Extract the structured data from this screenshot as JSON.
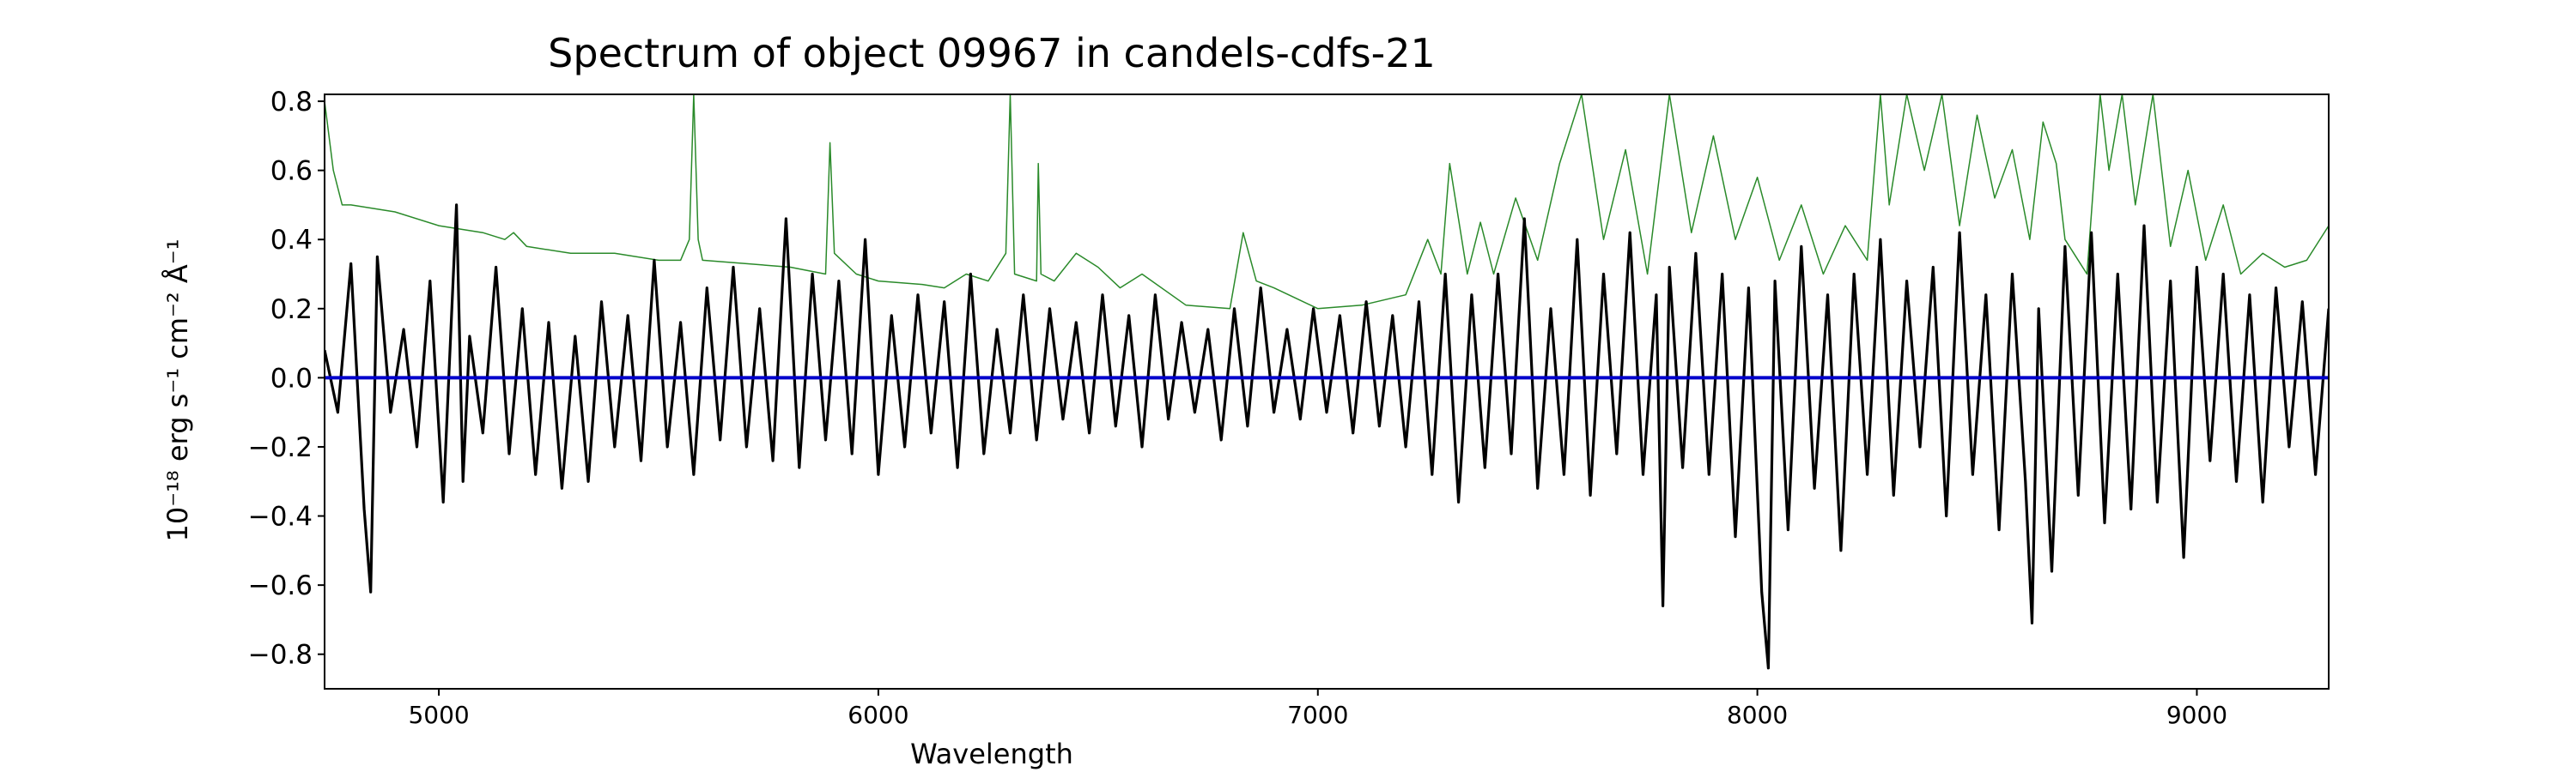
{
  "chart_data": {
    "type": "line",
    "title": "Spectrum of object 09967 in candels-cdfs-21",
    "xlabel": "Wavelength",
    "ylabel": "10⁻¹⁸ erg s⁻¹ cm⁻² Å⁻¹",
    "xlim": [
      4740,
      9300
    ],
    "ylim": [
      -0.9,
      0.82
    ],
    "xticks": [
      5000,
      6000,
      7000,
      8000,
      9000
    ],
    "yticks": [
      -0.8,
      -0.6,
      -0.4,
      -0.2,
      0.0,
      0.2,
      0.4,
      0.6,
      0.8
    ],
    "grid": false,
    "legend": "none",
    "series": [
      {
        "role": "flux",
        "color": "#000000",
        "x": [
          4740,
          4770,
          4800,
          4830,
          4845,
          4860,
          4890,
          4920,
          4950,
          4980,
          5010,
          5040,
          5055,
          5070,
          5100,
          5130,
          5160,
          5190,
          5220,
          5250,
          5280,
          5310,
          5340,
          5370,
          5400,
          5430,
          5460,
          5490,
          5520,
          5550,
          5580,
          5610,
          5640,
          5670,
          5700,
          5730,
          5760,
          5790,
          5820,
          5850,
          5880,
          5910,
          5940,
          5970,
          6000,
          6030,
          6060,
          6090,
          6120,
          6150,
          6180,
          6210,
          6240,
          6270,
          6300,
          6330,
          6360,
          6390,
          6420,
          6450,
          6480,
          6510,
          6540,
          6570,
          6600,
          6630,
          6660,
          6690,
          6720,
          6750,
          6780,
          6810,
          6840,
          6870,
          6900,
          6930,
          6960,
          6990,
          7020,
          7050,
          7080,
          7110,
          7140,
          7170,
          7200,
          7230,
          7260,
          7290,
          7320,
          7350,
          7380,
          7410,
          7440,
          7470,
          7500,
          7530,
          7560,
          7590,
          7620,
          7650,
          7680,
          7710,
          7740,
          7770,
          7785,
          7800,
          7830,
          7860,
          7890,
          7920,
          7950,
          7980,
          8010,
          8025,
          8040,
          8070,
          8100,
          8130,
          8160,
          8190,
          8220,
          8250,
          8280,
          8310,
          8340,
          8370,
          8400,
          8430,
          8460,
          8490,
          8520,
          8550,
          8580,
          8610,
          8625,
          8640,
          8670,
          8700,
          8730,
          8760,
          8790,
          8820,
          8850,
          8880,
          8910,
          8940,
          8970,
          9000,
          9030,
          9060,
          9090,
          9120,
          9150,
          9180,
          9210,
          9240,
          9270,
          9300
        ],
        "y": [
          0.08,
          -0.1,
          0.33,
          -0.38,
          -0.62,
          0.35,
          -0.1,
          0.14,
          -0.2,
          0.28,
          -0.36,
          0.5,
          -0.3,
          0.12,
          -0.16,
          0.32,
          -0.22,
          0.2,
          -0.28,
          0.16,
          -0.32,
          0.12,
          -0.3,
          0.22,
          -0.2,
          0.18,
          -0.24,
          0.34,
          -0.2,
          0.16,
          -0.28,
          0.26,
          -0.18,
          0.32,
          -0.2,
          0.2,
          -0.24,
          0.46,
          -0.26,
          0.3,
          -0.18,
          0.28,
          -0.22,
          0.4,
          -0.28,
          0.18,
          -0.2,
          0.24,
          -0.16,
          0.22,
          -0.26,
          0.3,
          -0.22,
          0.14,
          -0.16,
          0.24,
          -0.18,
          0.2,
          -0.12,
          0.16,
          -0.16,
          0.24,
          -0.14,
          0.18,
          -0.2,
          0.24,
          -0.12,
          0.16,
          -0.1,
          0.14,
          -0.18,
          0.2,
          -0.14,
          0.26,
          -0.1,
          0.14,
          -0.12,
          0.2,
          -0.1,
          0.18,
          -0.16,
          0.22,
          -0.14,
          0.18,
          -0.2,
          0.22,
          -0.28,
          0.3,
          -0.36,
          0.24,
          -0.26,
          0.3,
          -0.22,
          0.46,
          -0.32,
          0.2,
          -0.28,
          0.4,
          -0.34,
          0.3,
          -0.22,
          0.42,
          -0.28,
          0.24,
          -0.66,
          0.32,
          -0.26,
          0.36,
          -0.28,
          0.3,
          -0.46,
          0.26,
          -0.62,
          -0.84,
          0.28,
          -0.44,
          0.38,
          -0.32,
          0.24,
          -0.5,
          0.3,
          -0.28,
          0.4,
          -0.34,
          0.28,
          -0.2,
          0.32,
          -0.4,
          0.42,
          -0.28,
          0.24,
          -0.44,
          0.3,
          -0.3,
          -0.71,
          0.2,
          -0.56,
          0.38,
          -0.34,
          0.42,
          -0.42,
          0.3,
          -0.38,
          0.44,
          -0.36,
          0.28,
          -0.52,
          0.32,
          -0.24,
          0.3,
          -0.3,
          0.24,
          -0.36,
          0.26,
          -0.2,
          0.22,
          -0.28,
          0.2
        ]
      },
      {
        "role": "sky",
        "color": "#2a8a2a",
        "x": [
          4740,
          4760,
          4780,
          4800,
          4900,
          5000,
          5100,
          5150,
          5170,
          5200,
          5300,
          5400,
          5500,
          5550,
          5570,
          5580,
          5590,
          5600,
          5700,
          5800,
          5880,
          5890,
          5900,
          5950,
          6000,
          6100,
          6150,
          6200,
          6250,
          6290,
          6300,
          6310,
          6360,
          6364,
          6370,
          6400,
          6450,
          6500,
          6550,
          6600,
          6700,
          6800,
          6830,
          6860,
          6900,
          6950,
          7000,
          7100,
          7200,
          7250,
          7280,
          7300,
          7340,
          7370,
          7400,
          7450,
          7500,
          7550,
          7600,
          7650,
          7700,
          7750,
          7800,
          7850,
          7900,
          7950,
          8000,
          8050,
          8100,
          8150,
          8200,
          8250,
          8280,
          8300,
          8340,
          8380,
          8420,
          8460,
          8500,
          8540,
          8580,
          8620,
          8650,
          8680,
          8700,
          8750,
          8780,
          8800,
          8830,
          8860,
          8900,
          8940,
          8980,
          9020,
          9060,
          9100,
          9150,
          9200,
          9250,
          9300
        ],
        "y": [
          0.8,
          0.6,
          0.5,
          0.5,
          0.48,
          0.44,
          0.42,
          0.4,
          0.42,
          0.38,
          0.36,
          0.36,
          0.34,
          0.34,
          0.4,
          0.82,
          0.4,
          0.34,
          0.33,
          0.32,
          0.3,
          0.68,
          0.36,
          0.3,
          0.28,
          0.27,
          0.26,
          0.3,
          0.28,
          0.36,
          0.82,
          0.3,
          0.28,
          0.62,
          0.3,
          0.28,
          0.36,
          0.32,
          0.26,
          0.3,
          0.21,
          0.2,
          0.42,
          0.28,
          0.26,
          0.23,
          0.2,
          0.21,
          0.24,
          0.4,
          0.3,
          0.62,
          0.3,
          0.45,
          0.3,
          0.52,
          0.34,
          0.62,
          0.82,
          0.4,
          0.66,
          0.3,
          0.82,
          0.42,
          0.7,
          0.4,
          0.58,
          0.34,
          0.5,
          0.3,
          0.44,
          0.34,
          0.82,
          0.5,
          0.82,
          0.6,
          0.82,
          0.44,
          0.76,
          0.52,
          0.66,
          0.4,
          0.74,
          0.62,
          0.4,
          0.3,
          0.82,
          0.6,
          0.82,
          0.5,
          0.82,
          0.38,
          0.6,
          0.34,
          0.5,
          0.3,
          0.36,
          0.32,
          0.34,
          0.44
        ]
      },
      {
        "role": "zero",
        "color": "#0000cc",
        "x": [
          4740,
          9300
        ],
        "y": [
          0,
          0
        ]
      }
    ]
  }
}
